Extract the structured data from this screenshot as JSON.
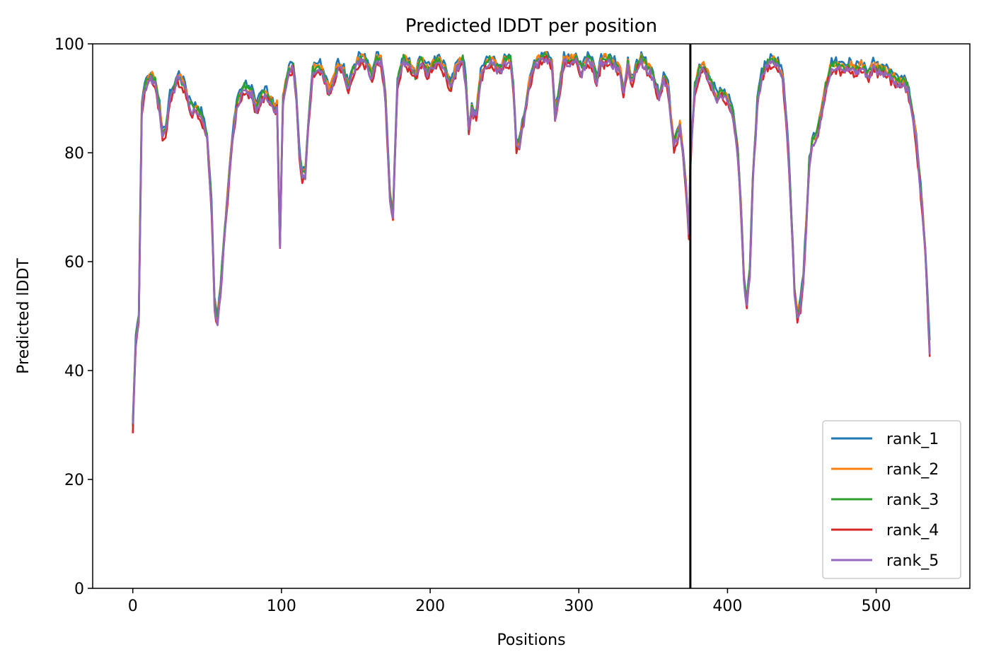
{
  "chart_data": {
    "type": "line",
    "title": "Predicted lDDT per position",
    "xlabel": "Positions",
    "ylabel": "Predicted lDDT",
    "xlim": [
      -27,
      563
    ],
    "ylim": [
      0,
      100
    ],
    "xticks": [
      0,
      100,
      200,
      300,
      400,
      500
    ],
    "yticks": [
      0,
      20,
      40,
      60,
      80,
      100
    ],
    "grid": false,
    "legend_position": "lower-right",
    "vline_x": 375,
    "x_max": 536,
    "base_profile": [
      [
        0,
        30
      ],
      [
        2,
        45
      ],
      [
        4,
        50
      ],
      [
        6,
        88
      ],
      [
        8,
        92
      ],
      [
        12,
        94
      ],
      [
        15,
        93
      ],
      [
        18,
        88
      ],
      [
        20,
        83
      ],
      [
        22,
        84
      ],
      [
        25,
        90
      ],
      [
        28,
        92
      ],
      [
        30,
        94
      ],
      [
        33,
        93
      ],
      [
        35,
        92
      ],
      [
        38,
        89
      ],
      [
        40,
        88
      ],
      [
        43,
        88
      ],
      [
        46,
        87
      ],
      [
        50,
        83
      ],
      [
        53,
        70
      ],
      [
        55,
        52
      ],
      [
        57,
        49
      ],
      [
        59,
        55
      ],
      [
        62,
        66
      ],
      [
        66,
        80
      ],
      [
        70,
        89
      ],
      [
        75,
        92
      ],
      [
        80,
        91
      ],
      [
        83,
        88
      ],
      [
        86,
        90
      ],
      [
        89,
        91
      ],
      [
        92,
        90
      ],
      [
        95,
        88
      ],
      [
        97,
        89
      ],
      [
        99,
        63
      ],
      [
        101,
        90
      ],
      [
        105,
        95
      ],
      [
        108,
        96
      ],
      [
        110,
        90
      ],
      [
        112,
        80
      ],
      [
        114,
        76
      ],
      [
        116,
        76
      ],
      [
        118,
        85
      ],
      [
        121,
        95
      ],
      [
        125,
        96
      ],
      [
        128,
        95
      ],
      [
        132,
        91
      ],
      [
        135,
        93
      ],
      [
        138,
        96
      ],
      [
        142,
        95
      ],
      [
        145,
        92
      ],
      [
        148,
        95
      ],
      [
        152,
        97
      ],
      [
        155,
        97
      ],
      [
        158,
        96
      ],
      [
        161,
        94
      ],
      [
        164,
        97
      ],
      [
        167,
        97
      ],
      [
        170,
        90
      ],
      [
        173,
        72
      ],
      [
        175,
        68
      ],
      [
        178,
        93
      ],
      [
        182,
        97
      ],
      [
        186,
        96
      ],
      [
        190,
        94
      ],
      [
        194,
        97
      ],
      [
        198,
        95
      ],
      [
        202,
        96
      ],
      [
        206,
        97
      ],
      [
        210,
        95
      ],
      [
        214,
        92
      ],
      [
        218,
        96
      ],
      [
        222,
        97
      ],
      [
        224,
        93
      ],
      [
        226,
        84
      ],
      [
        228,
        88
      ],
      [
        231,
        87
      ],
      [
        234,
        94
      ],
      [
        237,
        96
      ],
      [
        240,
        97
      ],
      [
        244,
        96
      ],
      [
        247,
        95
      ],
      [
        250,
        97
      ],
      [
        254,
        97
      ],
      [
        256,
        92
      ],
      [
        258,
        81
      ],
      [
        260,
        82
      ],
      [
        263,
        86
      ],
      [
        266,
        92
      ],
      [
        270,
        96
      ],
      [
        274,
        97
      ],
      [
        278,
        98
      ],
      [
        282,
        96
      ],
      [
        284,
        87
      ],
      [
        286,
        90
      ],
      [
        290,
        97
      ],
      [
        294,
        97
      ],
      [
        298,
        97
      ],
      [
        302,
        95
      ],
      [
        306,
        97
      ],
      [
        310,
        96
      ],
      [
        312,
        93
      ],
      [
        315,
        97
      ],
      [
        320,
        97
      ],
      [
        325,
        96
      ],
      [
        328,
        95
      ],
      [
        330,
        91
      ],
      [
        333,
        96
      ],
      [
        336,
        93
      ],
      [
        339,
        96
      ],
      [
        342,
        97
      ],
      [
        345,
        96
      ],
      [
        348,
        95
      ],
      [
        351,
        93
      ],
      [
        354,
        90
      ],
      [
        357,
        94
      ],
      [
        360,
        92
      ],
      [
        362,
        86
      ],
      [
        364,
        81
      ],
      [
        366,
        83
      ],
      [
        368,
        85
      ],
      [
        370,
        80
      ],
      [
        372,
        74
      ],
      [
        374,
        65
      ],
      [
        375,
        78
      ],
      [
        378,
        92
      ],
      [
        381,
        95
      ],
      [
        384,
        96
      ],
      [
        387,
        94
      ],
      [
        390,
        92
      ],
      [
        393,
        90
      ],
      [
        396,
        91
      ],
      [
        400,
        90
      ],
      [
        403,
        88
      ],
      [
        405,
        85
      ],
      [
        407,
        80
      ],
      [
        409,
        70
      ],
      [
        411,
        57
      ],
      [
        413,
        52
      ],
      [
        415,
        58
      ],
      [
        417,
        75
      ],
      [
        420,
        89
      ],
      [
        423,
        94
      ],
      [
        426,
        96
      ],
      [
        430,
        97
      ],
      [
        434,
        96
      ],
      [
        437,
        94
      ],
      [
        439,
        88
      ],
      [
        441,
        80
      ],
      [
        443,
        68
      ],
      [
        445,
        55
      ],
      [
        447,
        50
      ],
      [
        449,
        52
      ],
      [
        451,
        57
      ],
      [
        453,
        67
      ],
      [
        455,
        78
      ],
      [
        457,
        82
      ],
      [
        460,
        83
      ],
      [
        463,
        87
      ],
      [
        466,
        92
      ],
      [
        470,
        96
      ],
      [
        474,
        96
      ],
      [
        478,
        95
      ],
      [
        482,
        96
      ],
      [
        486,
        95
      ],
      [
        490,
        96
      ],
      [
        494,
        94
      ],
      [
        498,
        96
      ],
      [
        502,
        95
      ],
      [
        506,
        95
      ],
      [
        510,
        94
      ],
      [
        514,
        93
      ],
      [
        518,
        93
      ],
      [
        521,
        92
      ],
      [
        524,
        88
      ],
      [
        527,
        82
      ],
      [
        529,
        76
      ],
      [
        531,
        70
      ],
      [
        533,
        62
      ],
      [
        535,
        50
      ],
      [
        536,
        44
      ]
    ],
    "series": [
      {
        "name": "rank_1",
        "color": "#1f77b4",
        "offset": 0.8,
        "seed": 1
      },
      {
        "name": "rank_2",
        "color": "#ff7f0e",
        "offset": 0.4,
        "seed": 2
      },
      {
        "name": "rank_3",
        "color": "#2ca02c",
        "offset": 0.2,
        "seed": 3
      },
      {
        "name": "rank_4",
        "color": "#d62728",
        "offset": -0.8,
        "seed": 4
      },
      {
        "name": "rank_5",
        "color": "#9467bd",
        "offset": -0.4,
        "seed": 5
      }
    ]
  }
}
